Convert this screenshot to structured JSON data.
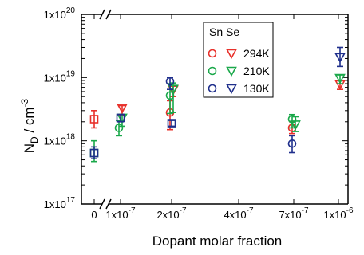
{
  "chart_data": {
    "type": "scatter",
    "title": "",
    "xlabel": "Dopant molar fraction",
    "ylabel_main": "N",
    "ylabel_sub": "D",
    "ylabel_unit": " / cm",
    "ylabel_sup": "-3",
    "x_scale": "categorical-position",
    "y_scale": "log",
    "ylim": [
      1e+17,
      1e+20
    ],
    "x_ticks": [
      "0",
      "1x10-7",
      "2x10-7",
      "4x10-7",
      "7x10-7",
      "1x10-6"
    ],
    "y_ticks": [
      {
        "base": "1x10",
        "exp": "17",
        "value": 1e+17
      },
      {
        "base": "1x10",
        "exp": "18",
        "value": 1e+18
      },
      {
        "base": "1x10",
        "exp": "19",
        "value": 1e+19
      },
      {
        "base": "1x10",
        "exp": "20",
        "value": 1e+20
      }
    ],
    "axis_break": "x between 0 and 1x10-7",
    "legend": {
      "title": "Sn Se",
      "placement": "top-right",
      "rows": [
        "294K",
        "210K",
        "130K"
      ]
    },
    "colors": {
      "294K": "#e8302a",
      "210K": "#1aa84a",
      "130K": "#1f2f8c"
    },
    "series": [
      {
        "name": "294K",
        "dopant": "Sn",
        "marker": "circle",
        "x": [
          "2x10-7",
          "7x10-7"
        ],
        "y": [
          2.8e+18,
          1.6e+18
        ],
        "err_low": [
          1.5e+18,
          1.3e+18
        ],
        "err_high": [
          4.3e+18,
          2e+18
        ]
      },
      {
        "name": "294K",
        "dopant": "Se",
        "marker": "triangle-down",
        "x": [
          "1x10-7",
          "2x10-7",
          "1x10-6"
        ],
        "y": [
          3.3e+18,
          6.4e+18,
          7.8e+18
        ],
        "err_low": [
          2.5e+18,
          5e+18,
          6.5e+18
        ],
        "err_high": [
          3.6e+18,
          7.5e+18,
          9e+18
        ]
      },
      {
        "name": "210K",
        "dopant": "Sn",
        "marker": "circle",
        "x": [
          "1x10-7",
          "2x10-7",
          "7x10-7"
        ],
        "y": [
          1.6e+18,
          5.2e+18,
          2.2e+18
        ],
        "err_low": [
          1.2e+18,
          2.7e+18,
          1.6e+18
        ],
        "err_high": [
          2.1e+18,
          8e+18,
          2.6e+18
        ]
      },
      {
        "name": "210K",
        "dopant": "Se",
        "marker": "triangle-down",
        "x": [
          "1x10-7",
          "2x10-7",
          "7x10-7",
          "1x10-6"
        ],
        "y": [
          2.3e+18,
          6.6e+18,
          1.8e+18,
          9.8e+18
        ],
        "err_low": [
          1.7e+18,
          2.8e+18,
          1.4e+18,
          8e+18
        ],
        "err_high": [
          2.6e+18,
          8.2e+18,
          2.4e+18,
          1.1e+19
        ]
      },
      {
        "name": "130K",
        "dopant": "Sn",
        "marker": "circle",
        "x": [
          "2x10-7",
          "7x10-7"
        ],
        "y": [
          8.7e+18,
          9e+17
        ],
        "err_low": [
          6.5e+18,
          6.5e+17
        ],
        "err_high": [
          1e+19,
          1.2e+18
        ]
      },
      {
        "name": "130K",
        "dopant": "Se",
        "marker": "triangle-down",
        "x": [
          "1x10-6"
        ],
        "y": [
          2.1e+19
        ],
        "err_low": [
          1.5e+19
        ],
        "err_high": [
          3e+19
        ]
      },
      {
        "name": "294K",
        "dopant": "undoped",
        "marker": "square",
        "x": [
          "0"
        ],
        "y": [
          2.2e+18
        ],
        "err_low": [
          1.6e+18
        ],
        "err_high": [
          3e+18
        ]
      },
      {
        "name": "210K",
        "dopant": "undoped",
        "marker": "square",
        "x": [
          "0"
        ],
        "y": [
          6.4e+17
        ],
        "err_low": [
          4.7e+17
        ],
        "err_high": [
          1e+18
        ]
      },
      {
        "name": "130K",
        "dopant": "undoped",
        "marker": "square",
        "x": [
          "0"
        ],
        "y": [
          6.4e+17
        ],
        "err_low": [
          5.2e+17
        ],
        "err_high": [
          8e+17
        ]
      },
      {
        "name": "130K",
        "dopant": "undoped",
        "marker": "square",
        "x": [
          "1x10-7"
        ],
        "y": [
          2.3e+18
        ],
        "err_low": [
          2e+18
        ],
        "err_high": [
          2.6e+18
        ]
      },
      {
        "name": "130K",
        "dopant": "undoped",
        "marker": "square",
        "x": [
          "2x10-7"
        ],
        "y": [
          1.9e+18
        ],
        "err_low": [
          1.7e+18
        ],
        "err_high": [
          2.1e+18
        ]
      }
    ]
  }
}
